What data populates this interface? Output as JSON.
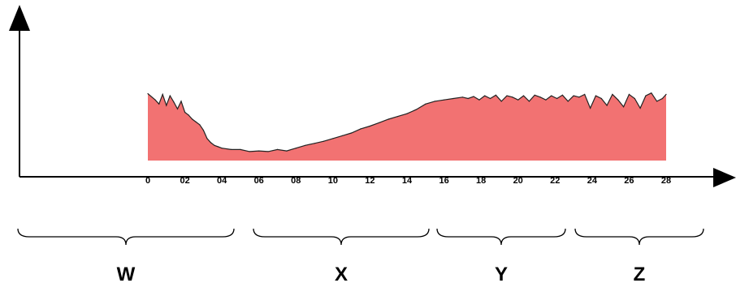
{
  "chart_data": {
    "type": "area",
    "title": "",
    "xlabel": "",
    "ylabel": "",
    "grid": false,
    "legend": "none",
    "area_color": "#f27272",
    "outline_color": "#222222",
    "xlim": [
      0,
      28
    ],
    "ylim": [
      0,
      100
    ],
    "x_ticks": [
      "0",
      "02",
      "04",
      "06",
      "08",
      "10",
      "12",
      "14",
      "16",
      "18",
      "20",
      "22",
      "24",
      "26",
      "28"
    ],
    "x_tick_values": [
      0,
      2,
      4,
      6,
      8,
      10,
      12,
      14,
      16,
      18,
      20,
      22,
      24,
      26,
      28
    ],
    "x": [
      0,
      0.4,
      0.6,
      0.8,
      1.0,
      1.2,
      1.4,
      1.6,
      1.8,
      2.0,
      2.2,
      2.4,
      2.6,
      2.8,
      3.0,
      3.2,
      3.4,
      3.6,
      3.8,
      4.0,
      4.5,
      5.0,
      5.5,
      6.0,
      6.5,
      7.0,
      7.5,
      8.0,
      8.5,
      9.0,
      9.5,
      10.0,
      10.5,
      11.0,
      11.5,
      12.0,
      12.5,
      13.0,
      13.5,
      14.0,
      14.5,
      15.0,
      15.5,
      16.0,
      16.5,
      17.0,
      17.3,
      17.6,
      17.9,
      18.2,
      18.5,
      18.8,
      19.1,
      19.4,
      19.7,
      20.0,
      20.3,
      20.6,
      20.9,
      21.2,
      21.5,
      21.8,
      22.1,
      22.4,
      22.7,
      23.0,
      23.3,
      23.6,
      23.9,
      24.2,
      24.5,
      24.8,
      25.1,
      25.4,
      25.7,
      26.0,
      26.3,
      26.6,
      26.9,
      27.2,
      27.5,
      27.8,
      28.0
    ],
    "y": [
      97,
      88,
      82,
      96,
      80,
      94,
      85,
      75,
      86,
      70,
      66,
      60,
      56,
      52,
      44,
      32,
      26,
      22,
      20,
      18,
      16,
      16,
      13,
      14,
      13,
      16,
      14,
      18,
      22,
      25,
      28,
      32,
      36,
      40,
      46,
      50,
      55,
      60,
      64,
      68,
      74,
      82,
      86,
      88,
      90,
      92,
      90,
      93,
      88,
      94,
      90,
      95,
      86,
      94,
      92,
      88,
      94,
      86,
      95,
      92,
      88,
      94,
      90,
      95,
      86,
      94,
      92,
      96,
      76,
      94,
      90,
      80,
      96,
      88,
      78,
      96,
      90,
      76,
      94,
      98,
      86,
      90,
      96
    ],
    "groups": [
      {
        "label": "W"
      },
      {
        "label": "X"
      },
      {
        "label": "Y"
      },
      {
        "label": "Z"
      }
    ]
  }
}
